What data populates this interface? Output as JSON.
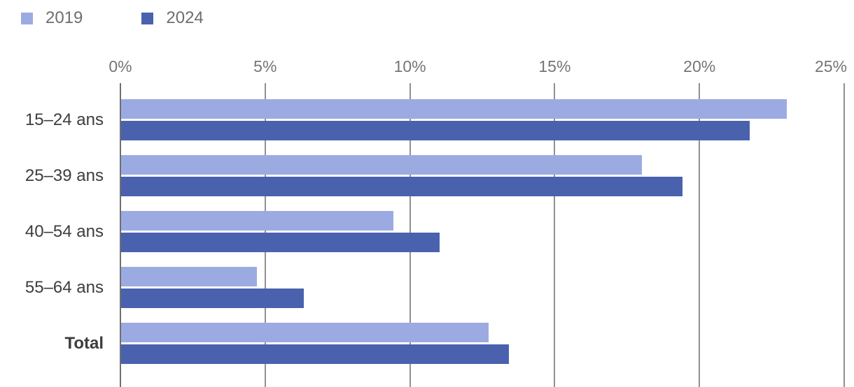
{
  "chart_data": {
    "type": "bar",
    "orientation": "horizontal",
    "title": "",
    "categories": [
      "15–24 ans",
      "25–39 ans",
      "40–54 ans",
      "55–64 ans",
      "Total"
    ],
    "bold_categories": [
      "Total"
    ],
    "series": [
      {
        "name": "2019",
        "color": "#9babe2",
        "values": [
          23.0,
          18.0,
          9.4,
          4.7,
          12.7
        ]
      },
      {
        "name": "2024",
        "color": "#4a61ae",
        "values": [
          21.7,
          19.4,
          11.0,
          6.3,
          13.4
        ]
      }
    ],
    "xlim": [
      0,
      25
    ],
    "x_ticks": [
      {
        "value": 0,
        "label": "0%"
      },
      {
        "value": 5,
        "label": "5%"
      },
      {
        "value": 10,
        "label": "10%"
      },
      {
        "value": 15,
        "label": "15%"
      },
      {
        "value": 20,
        "label": "20%"
      },
      {
        "value": 25,
        "label": "25%"
      }
    ],
    "unit": "%",
    "grid": "vertical",
    "legend_position": "top-left"
  },
  "colors": {
    "background": "#ffffff",
    "axis_line": "#6f6f6f",
    "gridline": "#919191",
    "tick_text": "#757575",
    "category_text": "#3d3d3d",
    "legend_text": "#6e6e6e"
  }
}
